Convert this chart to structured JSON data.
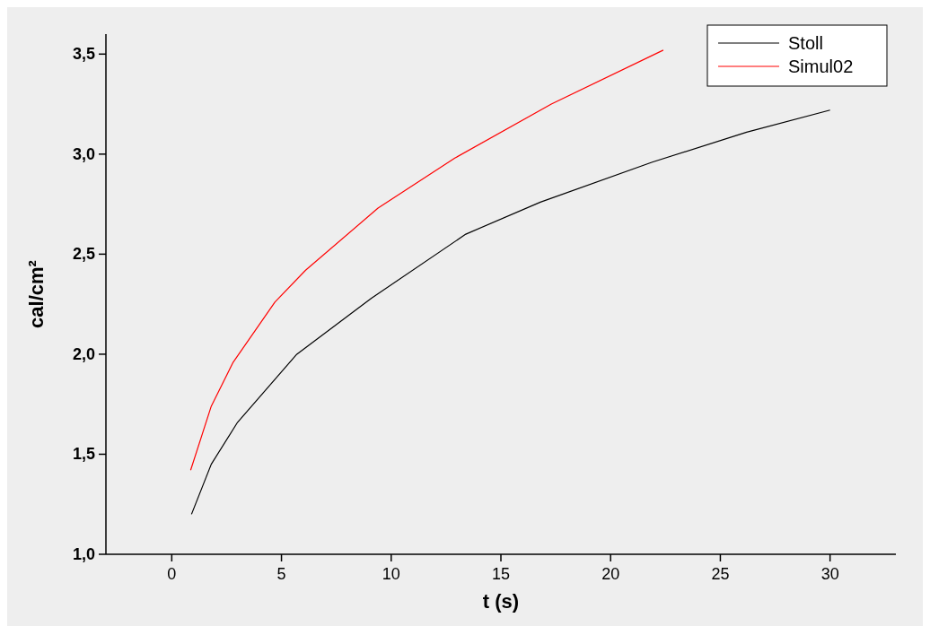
{
  "chart_data": {
    "type": "line",
    "xlabel": "t (s)",
    "ylabel": "cal/cm²",
    "xlim": [
      -3,
      33
    ],
    "xticks": [
      0,
      5,
      10,
      15,
      20,
      25,
      30
    ],
    "ylim": [
      1,
      3.6
    ],
    "yticks": [
      {
        "value": 1,
        "label": "1,0"
      },
      {
        "value": 1.5,
        "label": "1,5"
      },
      {
        "value": 2,
        "label": "2,0"
      },
      {
        "value": 2.5,
        "label": "2,5"
      },
      {
        "value": 3,
        "label": "3,0"
      },
      {
        "value": 3.5,
        "label": "3,5"
      }
    ],
    "legend": "top right",
    "grid": false,
    "series": [
      {
        "name": "Stoll",
        "color": "#000000",
        "x": [
          0.9,
          1.8,
          3.0,
          5.7,
          9.1,
          13.4,
          16.8,
          21.9,
          26.2,
          30
        ],
        "values": [
          1.2,
          1.45,
          1.66,
          2.0,
          2.28,
          2.6,
          2.76,
          2.96,
          3.11,
          3.22
        ]
      },
      {
        "name": "Simul02",
        "color": "#ff0000",
        "x": [
          0.86,
          1.8,
          2.8,
          4.7,
          6.1,
          9.4,
          12.9,
          17.3,
          22.4
        ],
        "values": [
          1.42,
          1.74,
          1.96,
          2.26,
          2.42,
          2.73,
          2.98,
          3.25,
          3.52
        ]
      }
    ]
  }
}
